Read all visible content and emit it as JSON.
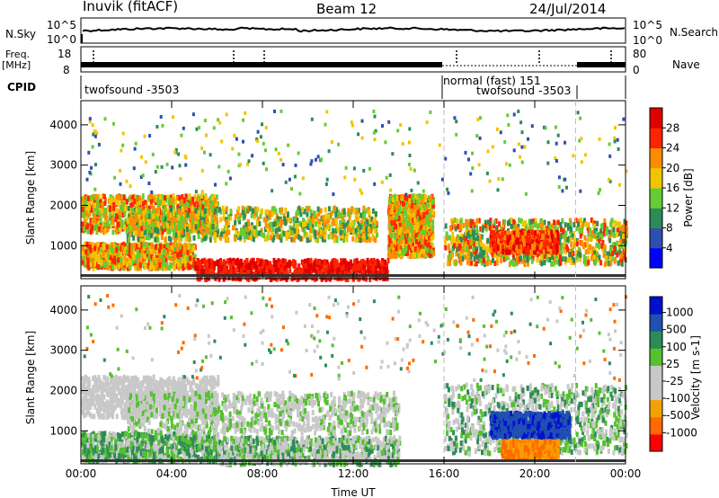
{
  "header": {
    "title": "Inuvik (fitACF)",
    "beam": "Beam 12",
    "date": "24/Jul/2014"
  },
  "labels": {
    "nsky": "N.Sky",
    "nsky_ticks": [
      "10^5",
      "10^0"
    ],
    "nsearch": "N.Search",
    "nsearch_ticks": [
      "10^5",
      "10^0"
    ],
    "freq": "Freq.",
    "freq_unit": "[MHz]",
    "freq_ticks": [
      "18",
      "8"
    ],
    "nave": "Nave",
    "nave_ticks": [
      "80",
      "0"
    ],
    "cpid": "CPID",
    "cpid_modes": [
      "twofsound -3503",
      "normal (fast) 151",
      "twofsound -3503"
    ]
  },
  "chart_data": [
    {
      "type": "heatmap",
      "title": "",
      "xlabel": "",
      "ylabel": "Slant Range [km]",
      "xticks": [
        "00:00",
        "04:00",
        "08:00",
        "12:00",
        "16:00",
        "20:00",
        "00:00"
      ],
      "yticks": [
        1000,
        2000,
        3000,
        4000
      ],
      "ylim": [
        180,
        4600
      ],
      "colorbar": {
        "label": "Power [dB]",
        "ticks": [
          "28",
          "24",
          "20",
          "16",
          "12",
          "8",
          "4"
        ],
        "colors": [
          "#0000ff",
          "#2f4fb0",
          "#2e8b57",
          "#66cc33",
          "#f2c500",
          "#ff8c00",
          "#ff2400",
          "#e00000"
        ]
      }
    },
    {
      "type": "heatmap",
      "title": "",
      "xlabel": "Time UT",
      "ylabel": "Slant Range [km]",
      "xticks": [
        "00:00",
        "04:00",
        "08:00",
        "12:00",
        "16:00",
        "20:00",
        "00:00"
      ],
      "yticks": [
        1000,
        2000,
        3000,
        4000
      ],
      "ylim": [
        180,
        4600
      ],
      "colorbar": {
        "label": "Velocity [m s-1]",
        "ticks": [
          "1000",
          "500",
          "100",
          "25",
          "-25",
          "-100",
          "-500",
          "-1000"
        ],
        "colors": [
          "#ff0000",
          "#ff6a00",
          "#f5a000",
          "#c8c8c8",
          "#c8c8c8",
          "#55c030",
          "#2e8b57",
          "#2050b0",
          "#0010d0"
        ]
      }
    }
  ]
}
